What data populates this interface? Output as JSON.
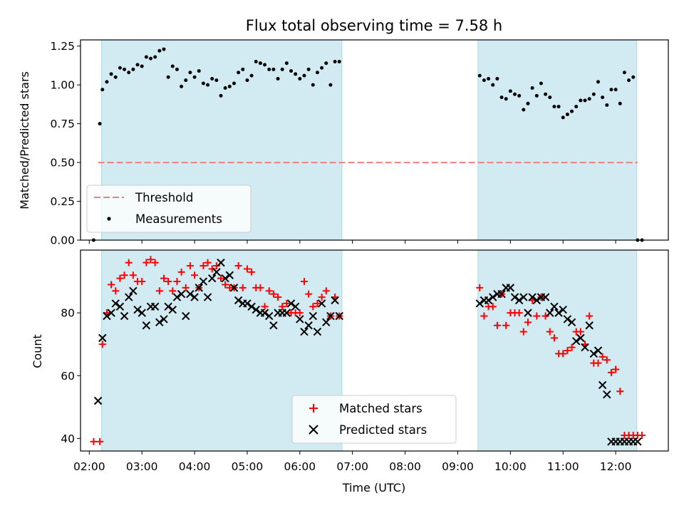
{
  "chart_data": {
    "title": "Flux total observing time = 7.58 h",
    "xlabel": "Time (UTC)",
    "x_ticks": [
      "02:00",
      "03:00",
      "04:00",
      "05:00",
      "06:00",
      "07:00",
      "08:00",
      "09:00",
      "10:00",
      "11:00",
      "12:00"
    ],
    "xlim": [
      "01:50",
      "13:00"
    ],
    "observing_windows": [
      [
        "02:14",
        "06:48"
      ],
      [
        "09:23",
        "12:24"
      ]
    ],
    "window_color": "#add8e6",
    "panels": [
      {
        "type": "scatter",
        "ylabel": "Matched/Predicted stars",
        "ylim": [
          0,
          1.29
        ],
        "y_ticks": [
          "0.00",
          "0.25",
          "0.50",
          "0.75",
          "1.00",
          "1.25"
        ],
        "threshold": {
          "name": "Threshold",
          "value": 0.5,
          "x_start": "02:10",
          "x_end": "12:25",
          "color": "#f08080",
          "style": "dashed"
        },
        "legend": {
          "entries": [
            "Threshold",
            "Measurements"
          ],
          "placement": "lower-left"
        },
        "series": [
          {
            "name": "Measurements",
            "color": "#000000",
            "marker": "dot",
            "x": [
              "02:05",
              "02:12",
              "02:15",
              "02:20",
              "02:25",
              "02:30",
              "02:35",
              "02:40",
              "02:45",
              "02:50",
              "02:55",
              "03:00",
              "03:05",
              "03:10",
              "03:15",
              "03:20",
              "03:25",
              "03:30",
              "03:35",
              "03:40",
              "03:45",
              "03:50",
              "03:55",
              "04:00",
              "04:05",
              "04:10",
              "04:15",
              "04:20",
              "04:25",
              "04:30",
              "04:35",
              "04:40",
              "04:45",
              "04:50",
              "04:55",
              "05:00",
              "05:05",
              "05:10",
              "05:15",
              "05:20",
              "05:25",
              "05:30",
              "05:35",
              "05:40",
              "05:45",
              "05:50",
              "05:55",
              "06:00",
              "06:05",
              "06:10",
              "06:15",
              "06:20",
              "06:25",
              "06:30",
              "06:35",
              "06:40",
              "06:45",
              "09:25",
              "09:30",
              "09:35",
              "09:40",
              "09:45",
              "09:50",
              "09:55",
              "10:00",
              "10:05",
              "10:10",
              "10:15",
              "10:20",
              "10:25",
              "10:30",
              "10:35",
              "10:40",
              "10:45",
              "10:50",
              "10:55",
              "11:00",
              "11:05",
              "11:10",
              "11:15",
              "11:20",
              "11:25",
              "11:30",
              "11:35",
              "11:40",
              "11:45",
              "11:50",
              "11:55",
              "12:00",
              "12:05",
              "12:10",
              "12:15",
              "12:20",
              "12:25",
              "12:30"
            ],
            "y": [
              0.0,
              0.75,
              0.97,
              1.02,
              1.07,
              1.05,
              1.11,
              1.1,
              1.08,
              1.1,
              1.13,
              1.12,
              1.18,
              1.17,
              1.18,
              1.22,
              1.23,
              1.05,
              1.12,
              1.1,
              0.99,
              1.03,
              1.08,
              1.05,
              1.09,
              1.01,
              1.0,
              1.04,
              1.03,
              0.93,
              0.98,
              0.99,
              1.01,
              1.08,
              1.1,
              1.03,
              1.06,
              1.15,
              1.14,
              1.13,
              1.1,
              1.1,
              1.04,
              1.1,
              1.14,
              1.09,
              1.07,
              1.04,
              1.06,
              1.1,
              1.0,
              1.08,
              1.11,
              1.14,
              1.0,
              1.15,
              1.15,
              1.06,
              1.03,
              1.04,
              1.0,
              1.04,
              0.92,
              0.91,
              0.96,
              0.94,
              0.93,
              0.84,
              0.88,
              0.98,
              0.93,
              1.01,
              0.94,
              0.92,
              0.86,
              0.86,
              0.79,
              0.81,
              0.83,
              0.86,
              0.9,
              0.9,
              0.91,
              0.94,
              1.02,
              0.92,
              0.87,
              0.97,
              0.97,
              0.88,
              1.08,
              1.03,
              1.05,
              0.0,
              0.0
            ]
          }
        ]
      },
      {
        "type": "scatter",
        "ylabel": "Count",
        "ylim": [
          36,
          100
        ],
        "y_ticks": [
          "40",
          "60",
          "80"
        ],
        "legend": {
          "entries": [
            "Matched stars",
            "Predicted stars"
          ],
          "placement": "lower-center"
        },
        "series": [
          {
            "name": "Matched stars",
            "color": "#ff0000",
            "marker": "plus",
            "x": [
              "02:05",
              "02:12",
              "02:15",
              "02:20",
              "02:25",
              "02:30",
              "02:35",
              "02:40",
              "02:45",
              "02:50",
              "02:55",
              "03:00",
              "03:05",
              "03:10",
              "03:15",
              "03:20",
              "03:25",
              "03:30",
              "03:35",
              "03:40",
              "03:45",
              "03:50",
              "03:55",
              "04:00",
              "04:05",
              "04:10",
              "04:15",
              "04:20",
              "04:25",
              "04:30",
              "04:35",
              "04:40",
              "04:45",
              "04:50",
              "04:55",
              "05:00",
              "05:05",
              "05:10",
              "05:15",
              "05:20",
              "05:25",
              "05:30",
              "05:35",
              "05:40",
              "05:45",
              "05:50",
              "05:55",
              "06:00",
              "06:05",
              "06:10",
              "06:15",
              "06:20",
              "06:25",
              "06:30",
              "06:35",
              "06:40",
              "06:45",
              "09:25",
              "09:30",
              "09:35",
              "09:40",
              "09:45",
              "09:50",
              "09:55",
              "10:00",
              "10:05",
              "10:10",
              "10:15",
              "10:20",
              "10:25",
              "10:30",
              "10:35",
              "10:40",
              "10:45",
              "10:50",
              "10:55",
              "11:00",
              "11:05",
              "11:10",
              "11:15",
              "11:20",
              "11:25",
              "11:30",
              "11:35",
              "11:40",
              "11:45",
              "11:50",
              "11:55",
              "12:00",
              "12:05",
              "12:10",
              "12:15",
              "12:20",
              "12:25",
              "12:30"
            ],
            "y": [
              39,
              39,
              70,
              80,
              89,
              87,
              91,
              92,
              96,
              92,
              90,
              90,
              96,
              97,
              96,
              87,
              91,
              90,
              87,
              90,
              93,
              88,
              95,
              92,
              88,
              95,
              96,
              94,
              95,
              91,
              89,
              88,
              88,
              95,
              88,
              94,
              93,
              88,
              88,
              82,
              87,
              86,
              85,
              82,
              83,
              80,
              80,
              80,
              90,
              86,
              82,
              83,
              85,
              87,
              79,
              85,
              79,
              88,
              79,
              82,
              82,
              76,
              86,
              76,
              80,
              80,
              80,
              74,
              77,
              84,
              79,
              85,
              79,
              74,
              72,
              67,
              67,
              68,
              69,
              74,
              74,
              70,
              79,
              64,
              64,
              66,
              65,
              61,
              62,
              55,
              41,
              41,
              41,
              41,
              41
            ]
          },
          {
            "name": "Predicted stars",
            "color": "#000000",
            "marker": "cross",
            "x": [
              "02:10",
              "02:15",
              "02:20",
              "02:25",
              "02:30",
              "02:35",
              "02:40",
              "02:45",
              "02:50",
              "02:55",
              "03:00",
              "03:05",
              "03:10",
              "03:15",
              "03:20",
              "03:25",
              "03:30",
              "03:35",
              "03:40",
              "03:45",
              "03:50",
              "03:55",
              "04:00",
              "04:05",
              "04:10",
              "04:15",
              "04:20",
              "04:25",
              "04:30",
              "04:35",
              "04:40",
              "04:45",
              "04:50",
              "04:55",
              "05:00",
              "05:05",
              "05:10",
              "05:15",
              "05:20",
              "05:25",
              "05:30",
              "05:35",
              "05:40",
              "05:45",
              "05:50",
              "05:55",
              "06:00",
              "06:05",
              "06:10",
              "06:15",
              "06:20",
              "06:25",
              "06:30",
              "06:35",
              "06:40",
              "06:45",
              "09:25",
              "09:30",
              "09:35",
              "09:40",
              "09:45",
              "09:50",
              "09:55",
              "10:00",
              "10:05",
              "10:10",
              "10:15",
              "10:20",
              "10:25",
              "10:30",
              "10:35",
              "10:40",
              "10:45",
              "10:50",
              "10:55",
              "11:00",
              "11:05",
              "11:10",
              "11:15",
              "11:20",
              "11:25",
              "11:30",
              "11:35",
              "11:40",
              "11:45",
              "11:50",
              "11:55",
              "12:00",
              "12:05",
              "12:10",
              "12:15",
              "12:20",
              "12:25"
            ],
            "y": [
              52,
              72,
              79,
              80,
              83,
              82,
              79,
              85,
              87,
              81,
              80,
              76,
              82,
              82,
              77,
              78,
              82,
              81,
              85,
              86,
              79,
              86,
              85,
              88,
              90,
              85,
              91,
              93,
              96,
              91,
              92,
              88,
              84,
              83,
              83,
              82,
              81,
              80,
              80,
              79,
              76,
              80,
              80,
              80,
              83,
              82,
              78,
              74,
              76,
              79,
              74,
              83,
              77,
              79,
              84,
              79,
              83,
              84,
              84,
              85,
              86,
              86,
              88,
              88,
              85,
              84,
              85,
              80,
              85,
              84,
              85,
              85,
              80,
              82,
              80,
              81,
              78,
              77,
              71,
              72,
              69,
              76,
              67,
              68,
              57,
              54,
              39,
              39,
              39,
              39,
              39,
              39,
              39
            ]
          }
        ]
      }
    ]
  }
}
